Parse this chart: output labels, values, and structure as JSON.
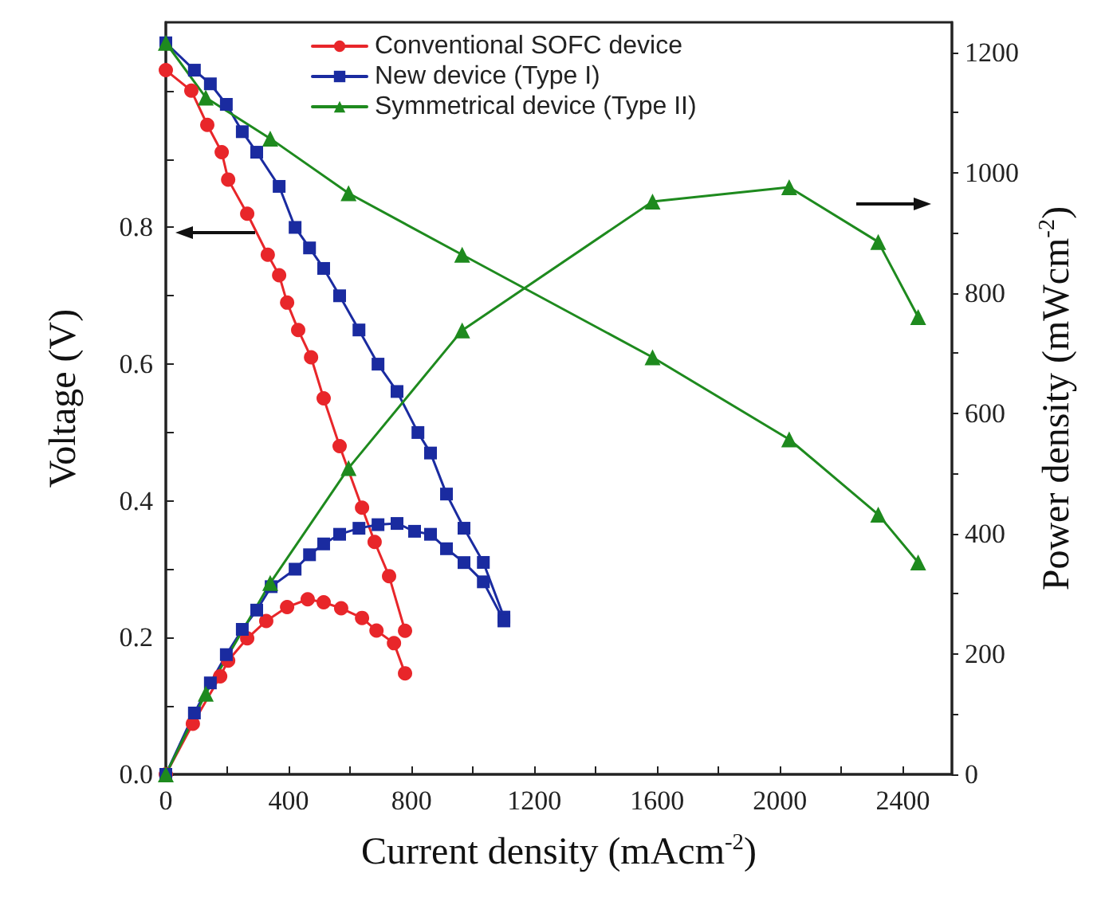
{
  "chart_data": {
    "type": "line",
    "xlabel": "Current density (mAcm$^{-2}$)",
    "ylabel": "Voltage (V)",
    "y2label": "Power density (mWcm$^{-2}$)",
    "legend": "top",
    "xlim": [
      0,
      2560
    ],
    "xticks": [
      0,
      {
        "value": 200,
        "label": null
      },
      400,
      {
        "value": 600,
        "label": null
      },
      800,
      {
        "value": 1000,
        "label": null
      },
      1200,
      {
        "value": 1400,
        "label": null
      },
      1600,
      {
        "value": 1800,
        "label": null
      },
      2000,
      {
        "value": 2200,
        "label": null
      },
      2400
    ],
    "ylim": [
      0,
      1.1
    ],
    "yticks": [
      {
        "value": 0,
        "label": "0.0"
      },
      {
        "value": 0.1,
        "label": null
      },
      {
        "value": 0.2,
        "label": "0.2"
      },
      {
        "value": 0.3,
        "label": null
      },
      {
        "value": 0.4,
        "label": "0.4"
      },
      {
        "value": 0.5,
        "label": null
      },
      {
        "value": 0.6,
        "label": "0.6"
      },
      {
        "value": 0.7,
        "label": null
      },
      {
        "value": 0.8,
        "label": "0.8"
      },
      {
        "value": 0.9,
        "label": null
      },
      {
        "value": 1.0,
        "label": null
      }
    ],
    "y2lim": [
      0,
      1250
    ],
    "y2ticks": [
      0,
      {
        "value": 100,
        "label": null
      },
      200,
      {
        "value": 300,
        "label": null
      },
      400,
      {
        "value": 500,
        "label": null
      },
      600,
      {
        "value": 700,
        "label": null
      },
      800,
      {
        "value": 900,
        "label": null
      },
      1000,
      {
        "value": 1100,
        "label": null
      },
      1200
    ],
    "series": [
      {
        "name": "Conventional SOFC device",
        "color": "#e8262a",
        "marker": "circle",
        "x": [
          0,
          83,
          135,
          182,
          203,
          265,
          332,
          369,
          395,
          431,
          473,
          514,
          566,
          639,
          680,
          727,
          779
        ],
        "values": [
          1.03,
          1.0,
          0.95,
          0.91,
          0.87,
          0.82,
          0.76,
          0.73,
          0.69,
          0.65,
          0.61,
          0.55,
          0.48,
          0.39,
          0.34,
          0.29,
          0.21
        ]
      },
      {
        "name": "New device (Type I)",
        "color": "#1a2ba0",
        "marker": "square",
        "x": [
          0,
          93,
          145,
          197,
          249,
          296,
          369,
          421,
          468,
          514,
          566,
          629,
          691,
          753,
          821,
          862,
          914,
          971,
          1034,
          1101
        ],
        "values": [
          1.07,
          1.03,
          1.01,
          0.98,
          0.94,
          0.91,
          0.86,
          0.8,
          0.77,
          0.74,
          0.7,
          0.65,
          0.6,
          0.56,
          0.5,
          0.47,
          0.41,
          0.36,
          0.31,
          0.23
        ]
      },
      {
        "name": "Symmetrical device (Type II)",
        "color": "#1e8a1e",
        "marker": "triangle",
        "x": [
          0,
          130,
          340,
          595,
          965,
          1585,
          2030,
          2320,
          2450
        ],
        "values": [
          1.07,
          0.99,
          0.93,
          0.85,
          0.76,
          0.61,
          0.49,
          0.38,
          0.31
        ]
      },
      {
        "color": "#e8262a",
        "marker": "circle",
        "axis": "y2",
        "x": [
          0,
          88,
          177,
          203,
          265,
          327,
          395,
          462,
          514,
          571,
          639,
          686,
          743,
          779
        ],
        "values": [
          0,
          84,
          163,
          189,
          226,
          255,
          278,
          291,
          286,
          276,
          260,
          239,
          218,
          168
        ]
      },
      {
        "color": "#1a2ba0",
        "marker": "square",
        "axis": "y2",
        "x": [
          0,
          93,
          145,
          197,
          249,
          296,
          343,
          421,
          468,
          514,
          566,
          629,
          691,
          753,
          810,
          862,
          914,
          971,
          1034,
          1101
        ],
        "values": [
          0,
          102,
          152,
          199,
          241,
          273,
          312,
          341,
          365,
          383,
          399,
          409,
          415,
          417,
          404,
          399,
          375,
          352,
          320,
          255
        ]
      },
      {
        "color": "#1e8a1e",
        "marker": "triangle",
        "axis": "y2",
        "x": [
          0,
          130,
          340,
          595,
          965,
          1585,
          2030,
          2320,
          2450
        ],
        "values": [
          0,
          134,
          318,
          509,
          738,
          952,
          976,
          885,
          760
        ]
      }
    ]
  }
}
